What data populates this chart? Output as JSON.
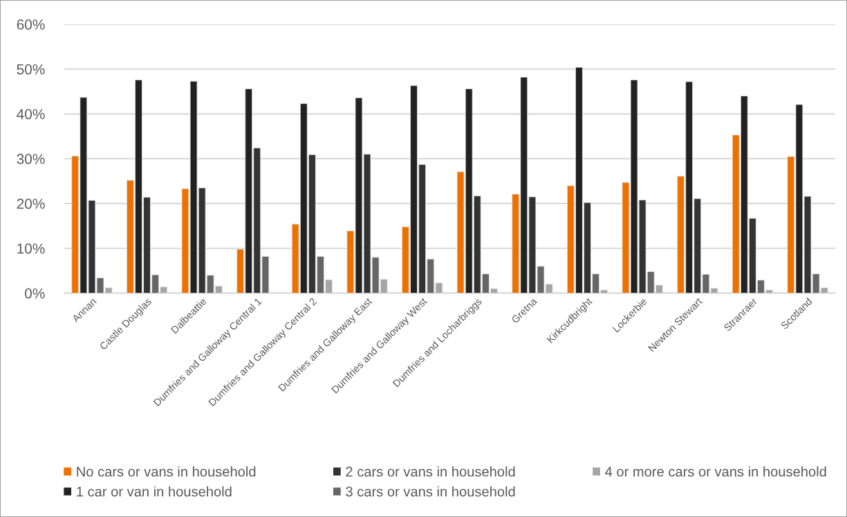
{
  "chart_data": {
    "type": "bar",
    "categories": [
      "Annan",
      "Castle Douglas",
      "Dalbeattie",
      "Dumfries and Galloway Central 1",
      "Dumfries and Galloway Central 2",
      "Dumfries and Galloway East",
      "Dumfries and Galloway West",
      "Dumfries and Locharbriggs",
      "Gretna",
      "Kirkcudbright",
      "Lockerbie",
      "Newton Stewart",
      "Stranraer",
      "Scotland"
    ],
    "series": [
      {
        "name": "No cars or vans in household",
        "color": "#ed7100",
        "values": [
          30.6,
          25.2,
          23.3,
          9.8,
          15.4,
          13.9,
          14.8,
          27.1,
          22.1,
          24.0,
          24.7,
          26.1,
          35.3,
          30.5
        ]
      },
      {
        "name": "1 car or van in household",
        "color": "#222222",
        "values": [
          43.7,
          47.6,
          47.3,
          45.6,
          42.3,
          43.6,
          46.3,
          45.6,
          48.2,
          50.4,
          47.6,
          47.2,
          44.0,
          42.1
        ]
      },
      {
        "name": "2 cars or vans in household",
        "color": "#333333",
        "values": [
          20.7,
          21.4,
          23.5,
          32.4,
          30.9,
          31.0,
          28.7,
          21.7,
          21.5,
          20.2,
          20.8,
          21.1,
          16.7,
          21.6
        ]
      },
      {
        "name": "3 cars or vans in household",
        "color": "#666666",
        "values": [
          3.4,
          4.1,
          4.0,
          8.2,
          8.2,
          8.0,
          7.6,
          4.3,
          6.0,
          4.3,
          4.8,
          4.2,
          2.9,
          4.3
        ]
      },
      {
        "name": "4 or more cars or vans in household",
        "color": "#a5a5a5",
        "values": [
          1.2,
          1.4,
          1.6,
          null,
          3.0,
          3.1,
          2.3,
          1.0,
          2.0,
          0.7,
          1.8,
          1.1,
          0.7,
          1.2
        ]
      }
    ],
    "ylim": [
      0,
      60
    ],
    "yticks": [
      {
        "value": 0,
        "label": "0%"
      },
      {
        "value": 10,
        "label": "10%"
      },
      {
        "value": 20,
        "label": "20%"
      },
      {
        "value": 30,
        "label": "30%"
      },
      {
        "value": 40,
        "label": "40%"
      },
      {
        "value": 50,
        "label": "50%"
      },
      {
        "value": 60,
        "label": "60%"
      }
    ],
    "grid": "y",
    "legend": "bottom"
  }
}
